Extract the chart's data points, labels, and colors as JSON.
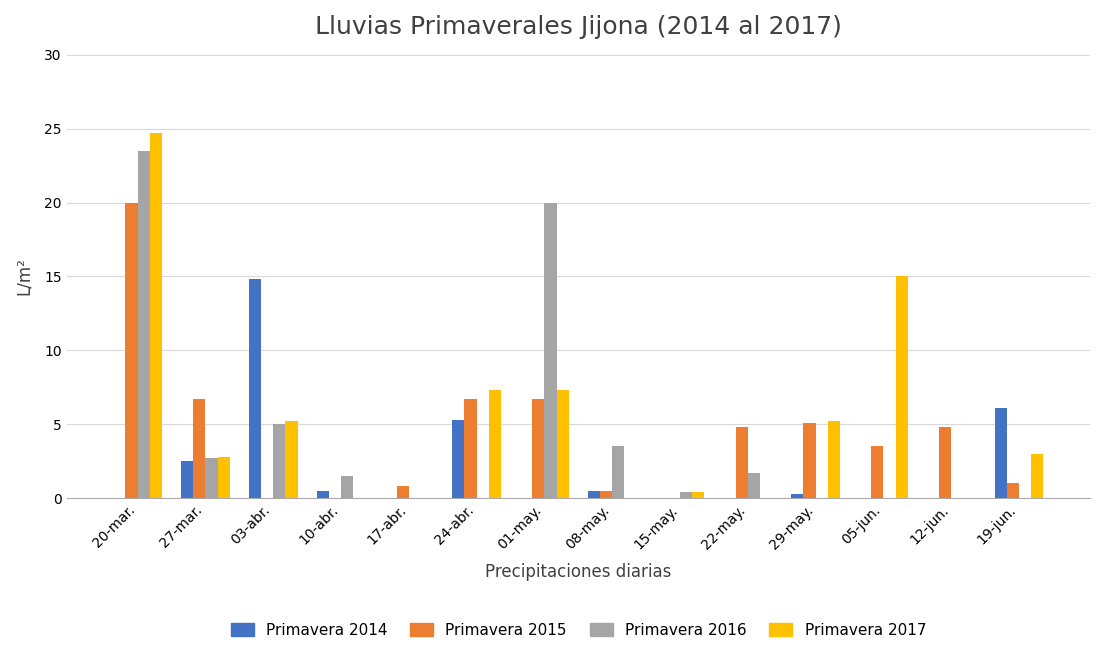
{
  "title": "Lluvias Primaverales Jijona (2014 al 2017)",
  "xlabel": "Precipitaciones diarias",
  "ylabel": "L/m²",
  "categories": [
    "20-mar.",
    "27-mar.",
    "03-abr.",
    "10-abr.",
    "17-abr.",
    "24-abr.",
    "01-may.",
    "08-may.",
    "15-may.",
    "22-may.",
    "29-may.",
    "05-jun.",
    "12-jun.",
    "19-jun."
  ],
  "series": {
    "Primavera 2014": [
      0,
      2.5,
      14.8,
      0.5,
      0,
      5.3,
      0,
      0.5,
      0,
      0,
      0.3,
      0,
      0,
      6.1
    ],
    "Primavera 2015": [
      20.0,
      6.7,
      0,
      0,
      0.8,
      6.7,
      6.7,
      0.5,
      0,
      4.8,
      5.1,
      3.5,
      4.8,
      1.0
    ],
    "Primavera 2016": [
      23.5,
      2.7,
      5.0,
      1.5,
      0,
      0,
      20.0,
      3.5,
      0.4,
      1.7,
      0,
      0,
      0,
      0
    ],
    "Primavera 2017": [
      24.7,
      2.8,
      5.2,
      0,
      0,
      7.3,
      7.3,
      0,
      0.4,
      0,
      5.2,
      15.0,
      0,
      3.0
    ]
  },
  "colors": {
    "Primavera 2014": "#4472C4",
    "Primavera 2015": "#ED7D31",
    "Primavera 2016": "#A5A5A5",
    "Primavera 2017": "#FFC000"
  },
  "ylim": [
    0,
    30
  ],
  "yticks": [
    0,
    5,
    10,
    15,
    20,
    25,
    30
  ],
  "title_fontsize": 18,
  "axis_label_fontsize": 12,
  "tick_fontsize": 10,
  "legend_fontsize": 11,
  "background_color": "#FFFFFF",
  "grid_color": "#D9D9D9"
}
